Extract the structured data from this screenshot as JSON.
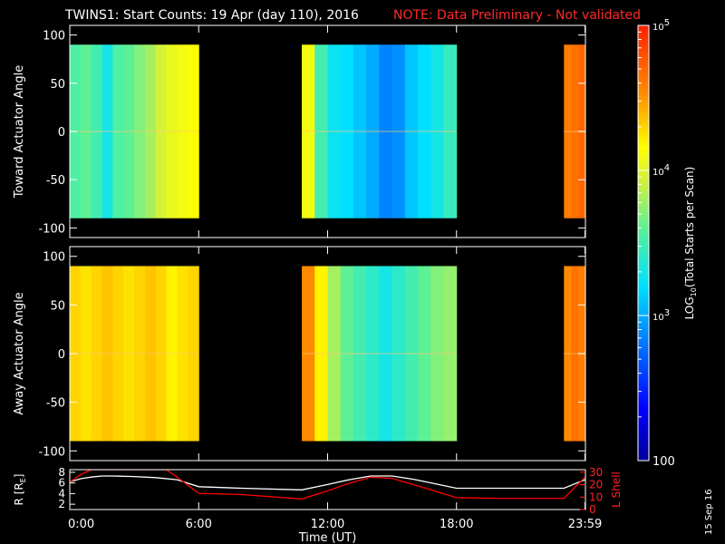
{
  "title": {
    "main": "TWINS1: Start Counts: 19 Apr (day 110), 2016",
    "note": "NOTE: Data Preliminary - Not validated",
    "note_color": "#ff2a2a"
  },
  "stamp": "15 Sep 16",
  "chart_data": [
    {
      "type": "heatmap",
      "ylabel": "Toward Actuator Angle",
      "ylim": [
        -110,
        110
      ],
      "yticks": [
        "100",
        "50",
        "0",
        "-50",
        "-100"
      ],
      "x_range_hours": [
        0,
        24
      ],
      "data_rows_angle": [
        -90,
        90
      ],
      "segments": [
        {
          "start_h": 0.0,
          "end_h": 6.0,
          "log10_counts": [
            3.55,
            3.6,
            3.5,
            3.3,
            3.55,
            3.6,
            3.7,
            3.8,
            3.95,
            4.05,
            4.1,
            4.15
          ]
        },
        {
          "start_h": 10.8,
          "end_h": 18.0,
          "log10_counts": [
            4.1,
            3.5,
            3.25,
            3.2,
            3.1,
            3.0,
            2.85,
            2.9,
            3.1,
            3.2,
            3.3,
            3.45
          ]
        },
        {
          "start_h": 23.0,
          "end_h": 24.0,
          "log10_counts": [
            4.6,
            4.65,
            4.7
          ]
        }
      ]
    },
    {
      "type": "heatmap",
      "ylabel": "Away Actuator Angle",
      "ylim": [
        -110,
        110
      ],
      "yticks": [
        "100",
        "50",
        "0",
        "-50",
        "-100"
      ],
      "x_range_hours": [
        0,
        24
      ],
      "data_rows_angle": [
        -90,
        90
      ],
      "segments": [
        {
          "start_h": 0.0,
          "end_h": 6.0,
          "log10_counts": [
            4.3,
            4.25,
            4.3,
            4.35,
            4.3,
            4.25,
            4.3,
            4.35,
            4.3,
            4.2,
            4.25,
            4.3
          ]
        },
        {
          "start_h": 10.8,
          "end_h": 18.0,
          "log10_counts": [
            4.55,
            4.2,
            3.8,
            3.6,
            3.5,
            3.4,
            3.3,
            3.4,
            3.5,
            3.6,
            3.7,
            3.75
          ]
        },
        {
          "start_h": 23.0,
          "end_h": 24.0,
          "log10_counts": [
            4.55,
            4.65,
            4.6
          ]
        }
      ]
    },
    {
      "type": "line",
      "ylabel_left": "R [R",
      "ylabel_left_sub": "E",
      "ylabel_left_end": "]",
      "ylabel_right": "L Shell",
      "yticks_left": [
        "8",
        "6",
        "4",
        "2"
      ],
      "ylim_left": [
        1,
        8.5
      ],
      "yticks_right": [
        "30",
        "20",
        "10",
        "0"
      ],
      "ylim_right": [
        0,
        32
      ],
      "xlabel": "Time (UT)",
      "xticks": [
        {
          "h": 0,
          "label": "0:00"
        },
        {
          "h": 6,
          "label": "6:00"
        },
        {
          "h": 12,
          "label": "12:00"
        },
        {
          "h": 18,
          "label": "18:00"
        },
        {
          "h": 23.98,
          "label": "23:59"
        }
      ],
      "series": [
        {
          "axis": "left",
          "color": "#ffffff",
          "x": [
            0,
            0.5,
            1,
            1.5,
            2,
            3,
            4,
            5,
            6,
            8,
            10.8,
            12,
            13,
            14,
            15,
            16,
            18,
            20,
            22,
            23,
            23.98
          ],
          "y": [
            6.2,
            6.8,
            7.1,
            7.3,
            7.3,
            7.2,
            7.0,
            6.6,
            5.3,
            5.0,
            4.7,
            5.7,
            6.6,
            7.3,
            7.3,
            6.7,
            5.0,
            5.0,
            5.0,
            5.0,
            6.6
          ]
        },
        {
          "axis": "right",
          "color": "#ff0000",
          "x": [
            0,
            0.5,
            1,
            1.5,
            4.5,
            5,
            6,
            8,
            10.8,
            12,
            13,
            14,
            15,
            16,
            18,
            20,
            22,
            23,
            23.98
          ],
          "y": [
            22,
            28,
            32,
            32,
            32,
            26,
            13,
            12,
            8.5,
            15,
            21,
            26,
            25,
            20,
            9.5,
            9,
            9,
            9,
            26
          ]
        }
      ]
    }
  ],
  "colorbar": {
    "label": "LOG",
    "label_sub": "10",
    "label_rest": "(Total Starts per Scan)",
    "min_log": 2,
    "max_log": 5,
    "ticks": [
      {
        "log": 5,
        "label": "10",
        "sup": "5"
      },
      {
        "log": 4,
        "label": "10",
        "sup": "4"
      },
      {
        "log": 3,
        "label": "10",
        "sup": "3"
      },
      {
        "log": 2,
        "label": "100",
        "sup": ""
      }
    ]
  }
}
